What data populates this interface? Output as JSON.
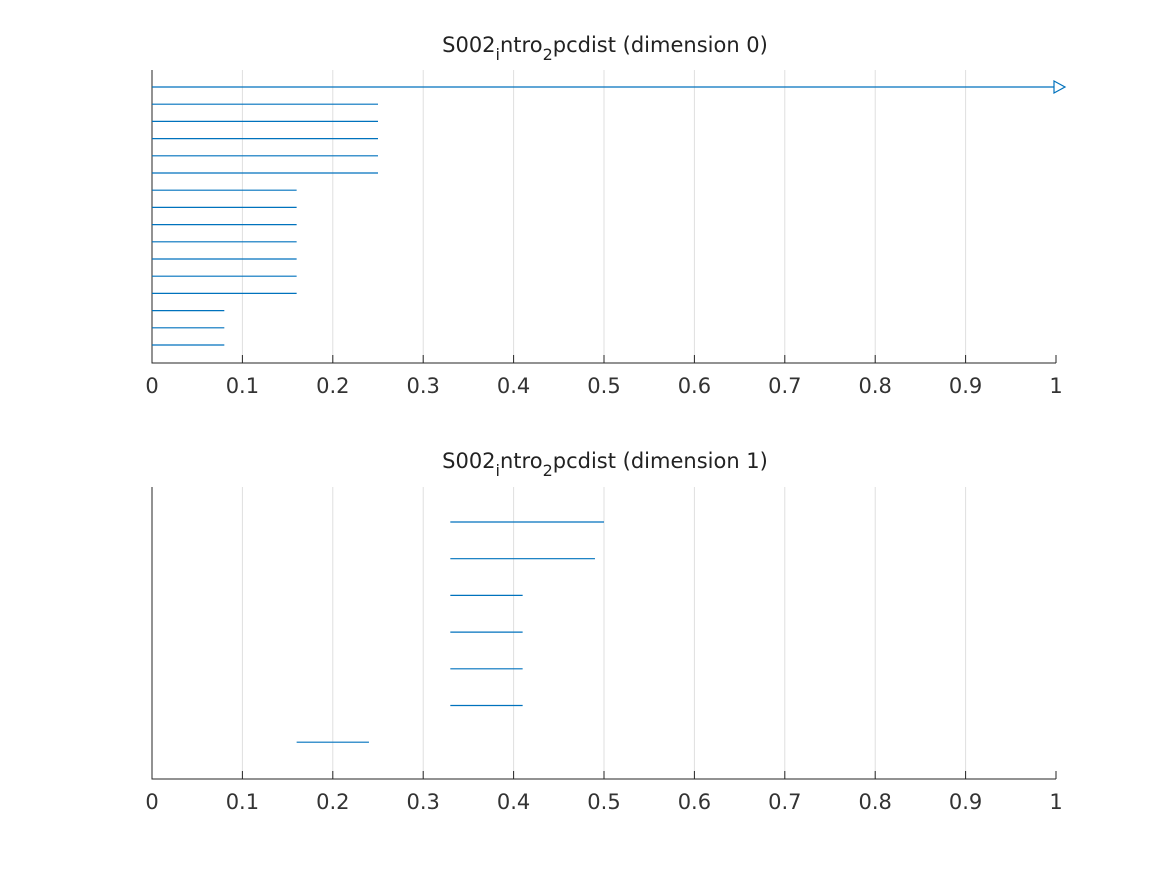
{
  "chart_data": [
    {
      "type": "barcode",
      "title_parts": [
        "S002",
        "i",
        "ntro",
        "2",
        "pcdist (dimension 0)"
      ],
      "xlim": [
        0,
        1
      ],
      "xticks": [
        "0",
        "0.1",
        "0.2",
        "0.3",
        "0.4",
        "0.5",
        "0.6",
        "0.7",
        "0.8",
        "0.9",
        "1"
      ],
      "grid": "vertical",
      "color": "#0072BD",
      "bars": [
        {
          "birth": 0,
          "death": 1,
          "infinite": true
        },
        {
          "birth": 0,
          "death": 0.25
        },
        {
          "birth": 0,
          "death": 0.25
        },
        {
          "birth": 0,
          "death": 0.25
        },
        {
          "birth": 0,
          "death": 0.25
        },
        {
          "birth": 0,
          "death": 0.25
        },
        {
          "birth": 0,
          "death": 0.16
        },
        {
          "birth": 0,
          "death": 0.16
        },
        {
          "birth": 0,
          "death": 0.16
        },
        {
          "birth": 0,
          "death": 0.16
        },
        {
          "birth": 0,
          "death": 0.16
        },
        {
          "birth": 0,
          "death": 0.16
        },
        {
          "birth": 0,
          "death": 0.16
        },
        {
          "birth": 0,
          "death": 0.08
        },
        {
          "birth": 0,
          "death": 0.08
        },
        {
          "birth": 0,
          "death": 0.08
        }
      ]
    },
    {
      "type": "barcode",
      "title_parts": [
        "S002",
        "i",
        "ntro",
        "2",
        "pcdist (dimension 1)"
      ],
      "xlim": [
        0,
        1
      ],
      "xticks": [
        "0",
        "0.1",
        "0.2",
        "0.3",
        "0.4",
        "0.5",
        "0.6",
        "0.7",
        "0.8",
        "0.9",
        "1"
      ],
      "grid": "vertical",
      "color": "#0072BD",
      "bars": [
        {
          "birth": 0.33,
          "death": 0.5
        },
        {
          "birth": 0.33,
          "death": 0.49
        },
        {
          "birth": 0.33,
          "death": 0.41
        },
        {
          "birth": 0.33,
          "death": 0.41
        },
        {
          "birth": 0.33,
          "death": 0.41
        },
        {
          "birth": 0.33,
          "death": 0.41
        },
        {
          "birth": 0.16,
          "death": 0.24
        }
      ]
    }
  ]
}
